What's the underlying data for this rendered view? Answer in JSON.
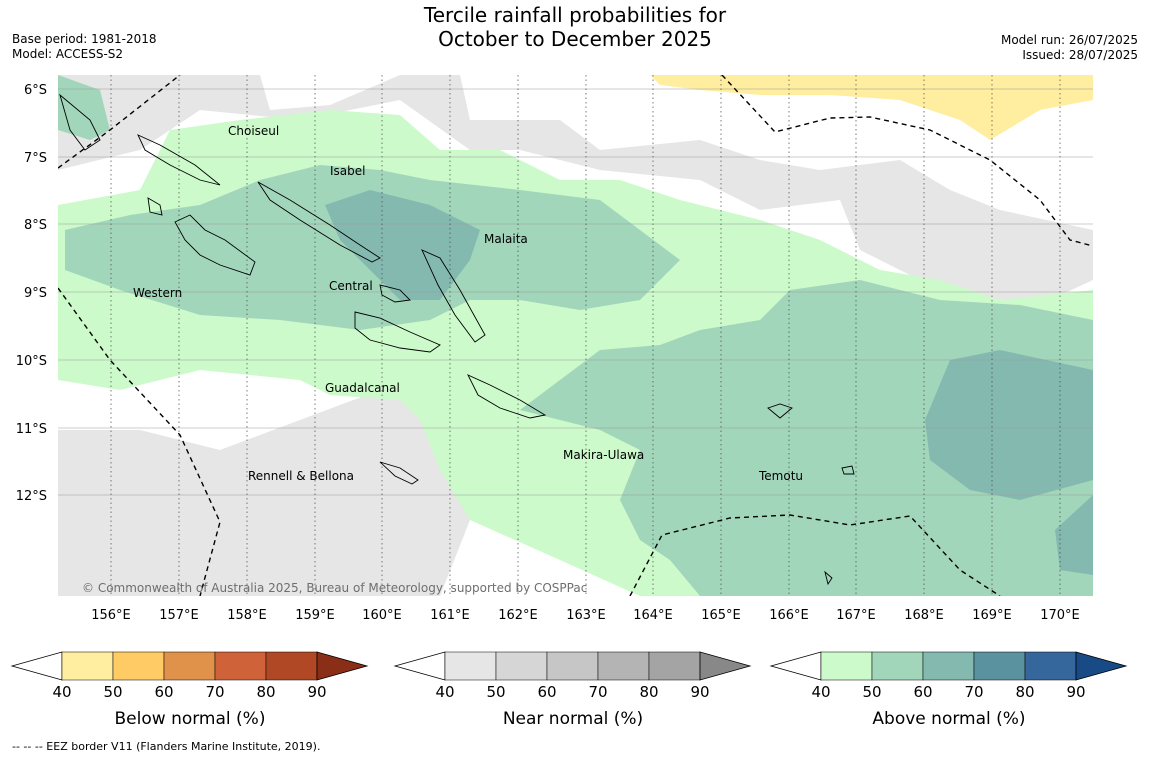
{
  "title_line1": "Tercile rainfall probabilities for",
  "title_line2": "October to December 2025",
  "base_period": "Base period: 1981-2018",
  "model": "Model: ACCESS-S2",
  "model_run": "Model run: 26/07/2025",
  "issued": "Issued: 28/07/2025",
  "copyright": "© Commonwealth of Australia 2025, Bureau of Meteorology, supported by COSPPac",
  "lat_labels": [
    "6°S",
    "7°S",
    "8°S",
    "9°S",
    "10°S",
    "11°S",
    "12°S"
  ],
  "lon_labels": [
    "156°E",
    "157°E",
    "158°E",
    "159°E",
    "160°E",
    "161°E",
    "162°E",
    "163°E",
    "164°E",
    "165°E",
    "166°E",
    "167°E",
    "168°E",
    "169°E",
    "170°E"
  ],
  "provinces": [
    "Choiseul",
    "Isabel",
    "Malaita",
    "Western",
    "Central",
    "Guadalcanal",
    "Makira-Ulawa",
    "Rennell & Bellona",
    "Temotu"
  ],
  "colorbars": [
    {
      "label": "Below normal (%)",
      "ticks": [
        "40",
        "50",
        "60",
        "70",
        "80",
        "90"
      ],
      "colors": [
        "#ffeea0",
        "#fecb64",
        "#e0924a",
        "#cf6238",
        "#b04826",
        "#8a2e18"
      ]
    },
    {
      "label": "Near normal (%)",
      "ticks": [
        "40",
        "50",
        "60",
        "70",
        "80",
        "90"
      ],
      "colors": [
        "#e6e6e6",
        "#d6d6d6",
        "#c6c6c6",
        "#b4b4b4",
        "#a4a4a4",
        "#888888"
      ]
    },
    {
      "label": "Above normal (%)",
      "ticks": [
        "40",
        "50",
        "60",
        "70",
        "80",
        "90"
      ],
      "colors": [
        "#ccfacb",
        "#a2d6bb",
        "#84b9b0",
        "#5a929f",
        "#35669c",
        "#184b85"
      ]
    }
  ],
  "footnote": "--  --  -- EEZ border V11 (Flanders Marine Institute, 2019)."
}
